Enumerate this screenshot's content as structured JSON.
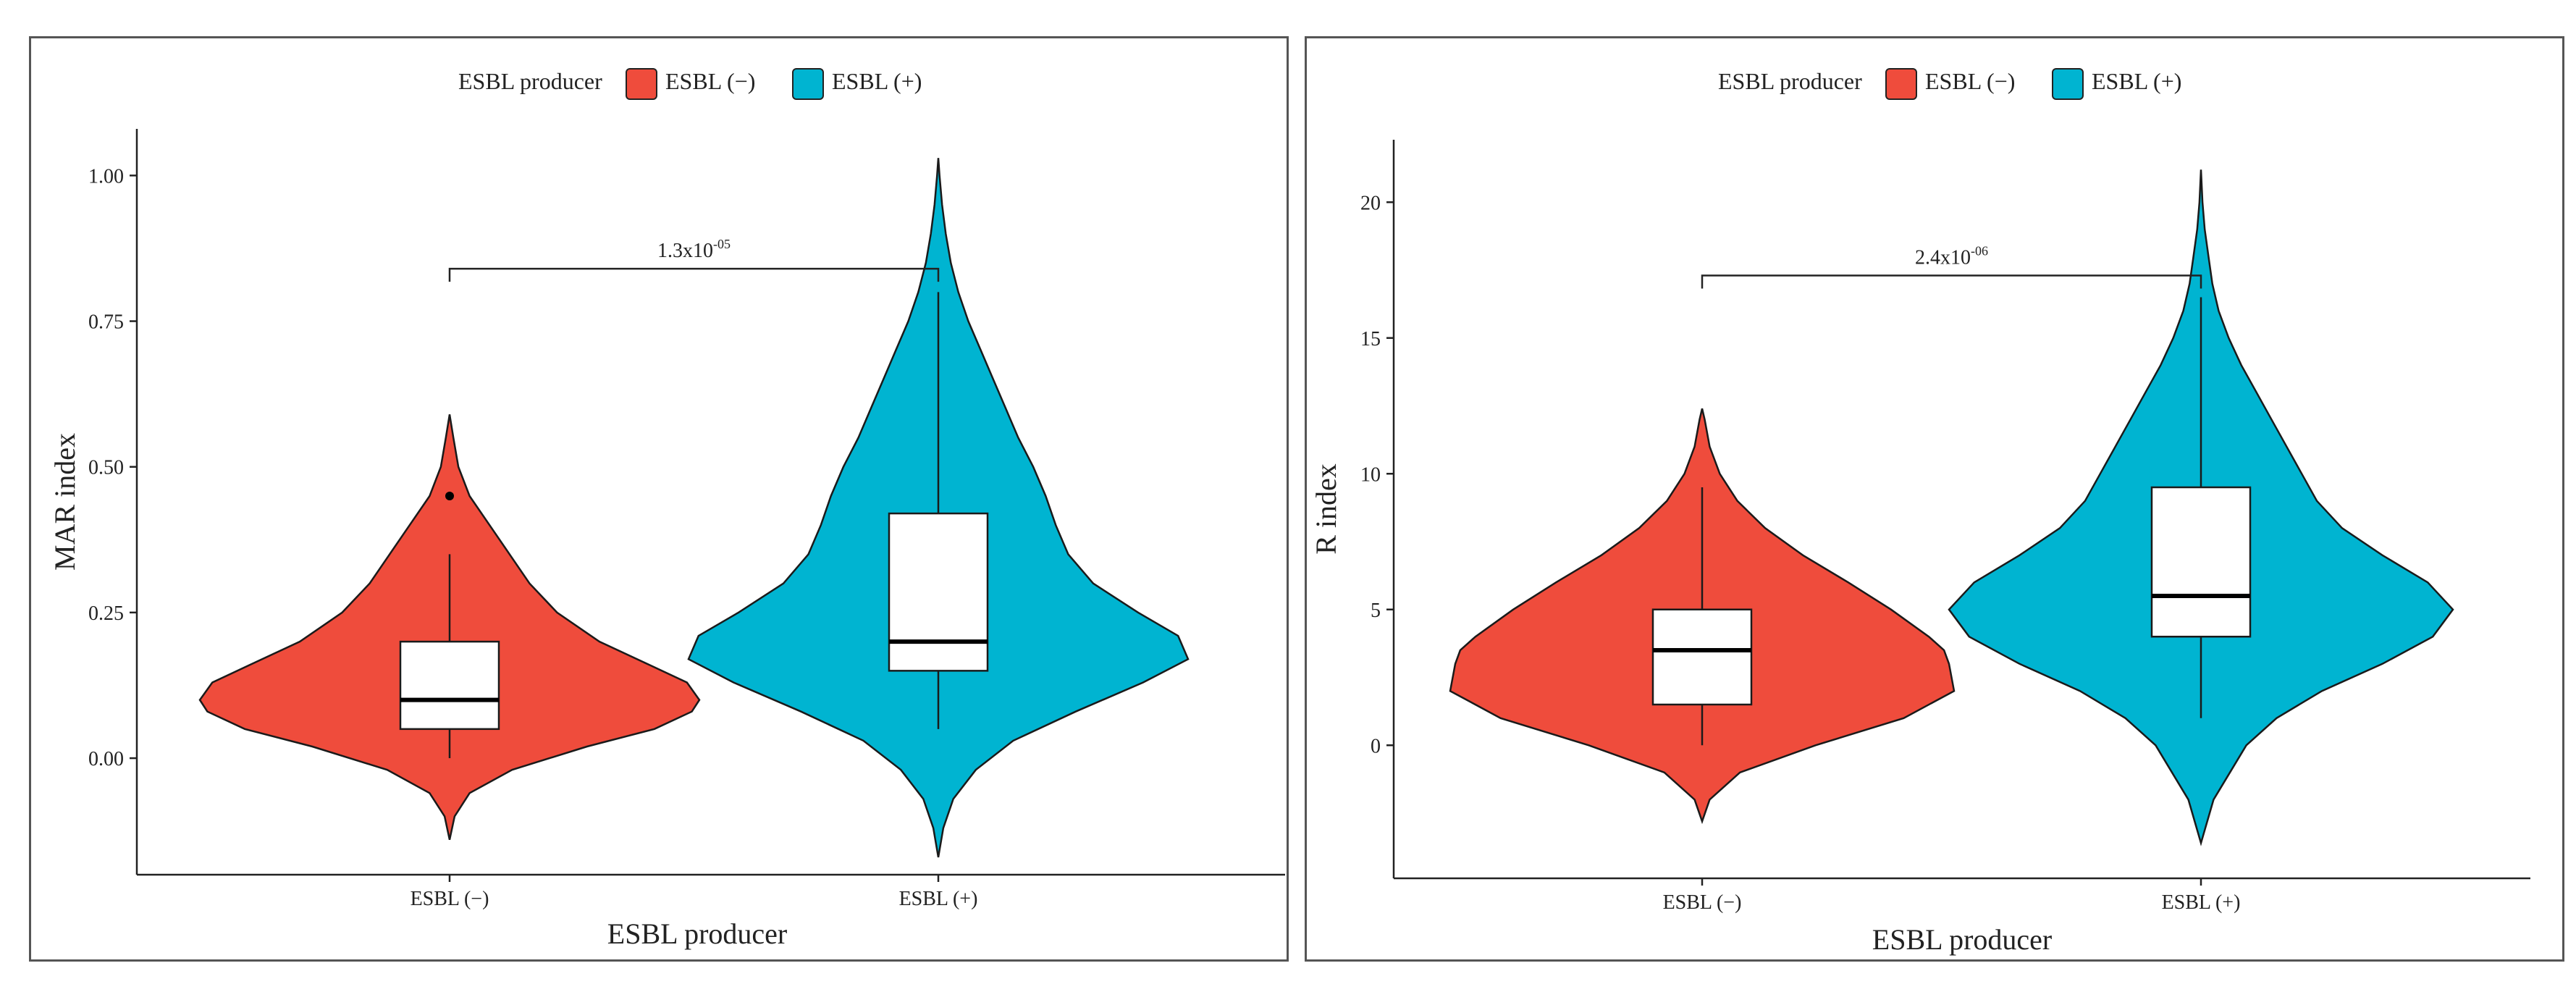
{
  "colors": {
    "negative": "#ef4c3c",
    "positive": "#00b4d1",
    "box_fill": "#ffffff",
    "outline": "#1a1a1a"
  },
  "panels": [
    {
      "legend": {
        "title": "ESBL producer",
        "items": [
          "ESBL (−)",
          "ESBL (+)"
        ]
      },
      "xlabel": "ESBL producer",
      "ylabel": "MAR index",
      "x_categories": [
        "ESBL (−)",
        "ESBL (+)"
      ],
      "y_ticks": [
        "0.00",
        "0.25",
        "0.50",
        "0.75",
        "1.00"
      ],
      "annotation": {
        "base": "1.3x10",
        "exp": "-05"
      }
    },
    {
      "legend": {
        "title": "ESBL producer",
        "items": [
          "ESBL (−)",
          "ESBL (+)"
        ]
      },
      "xlabel": "ESBL producer",
      "ylabel": "R index",
      "x_categories": [
        "ESBL (−)",
        "ESBL (+)"
      ],
      "y_ticks": [
        "0",
        "5",
        "10",
        "15",
        "20"
      ],
      "annotation": {
        "base": "2.4x10",
        "exp": "-06"
      }
    }
  ],
  "chart_data": [
    {
      "type": "violin",
      "xlabel": "ESBL producer",
      "ylabel": "MAR index",
      "categories": [
        "ESBL (−)",
        "ESBL (+)"
      ],
      "ylim": [
        -0.2,
        1.08
      ],
      "yticks": [
        0,
        0.25,
        0.5,
        0.75,
        1.0
      ],
      "grid": false,
      "legend_position": "top",
      "series": [
        {
          "name": "ESBL (−)",
          "violin": {
            "min": -0.14,
            "max": 0.59,
            "density": [
              [
                -0.14,
                0.0
              ],
              [
                -0.1,
                0.02
              ],
              [
                -0.06,
                0.08
              ],
              [
                -0.02,
                0.25
              ],
              [
                0.02,
                0.55
              ],
              [
                0.05,
                0.82
              ],
              [
                0.08,
                0.97
              ],
              [
                0.1,
                1.0
              ],
              [
                0.13,
                0.95
              ],
              [
                0.16,
                0.8
              ],
              [
                0.2,
                0.6
              ],
              [
                0.25,
                0.43
              ],
              [
                0.3,
                0.32
              ],
              [
                0.35,
                0.24
              ],
              [
                0.4,
                0.16
              ],
              [
                0.45,
                0.08
              ],
              [
                0.5,
                0.035
              ],
              [
                0.55,
                0.015
              ],
              [
                0.59,
                0.0
              ]
            ]
          },
          "box": {
            "whisker_low": 0.0,
            "q1": 0.05,
            "median": 0.1,
            "q3": 0.2,
            "whisker_high": 0.35
          },
          "outliers": [
            0.45
          ]
        },
        {
          "name": "ESBL (+)",
          "violin": {
            "min": -0.17,
            "max": 1.03,
            "density": [
              [
                -0.17,
                0.0
              ],
              [
                -0.12,
                0.02
              ],
              [
                -0.07,
                0.06
              ],
              [
                -0.02,
                0.15
              ],
              [
                0.03,
                0.3
              ],
              [
                0.08,
                0.55
              ],
              [
                0.13,
                0.82
              ],
              [
                0.17,
                1.0
              ],
              [
                0.21,
                0.96
              ],
              [
                0.25,
                0.8
              ],
              [
                0.3,
                0.62
              ],
              [
                0.35,
                0.52
              ],
              [
                0.4,
                0.47
              ],
              [
                0.45,
                0.43
              ],
              [
                0.5,
                0.38
              ],
              [
                0.55,
                0.32
              ],
              [
                0.6,
                0.27
              ],
              [
                0.65,
                0.22
              ],
              [
                0.7,
                0.17
              ],
              [
                0.75,
                0.12
              ],
              [
                0.8,
                0.08
              ],
              [
                0.85,
                0.05
              ],
              [
                0.9,
                0.03
              ],
              [
                0.95,
                0.015
              ],
              [
                1.0,
                0.005
              ],
              [
                1.03,
                0.0
              ]
            ]
          },
          "box": {
            "whisker_low": 0.05,
            "q1": 0.15,
            "median": 0.2,
            "q3": 0.42,
            "whisker_high": 0.8
          },
          "outliers": []
        }
      ],
      "comparison": {
        "from": "ESBL (−)",
        "to": "ESBL (+)",
        "y": 0.84,
        "label": "1.3x10^-05"
      }
    },
    {
      "type": "violin",
      "xlabel": "ESBL producer",
      "ylabel": "R index",
      "categories": [
        "ESBL (−)",
        "ESBL (+)"
      ],
      "ylim": [
        -4.9,
        22.3
      ],
      "yticks": [
        0,
        5,
        10,
        15,
        20
      ],
      "grid": false,
      "legend_position": "top",
      "series": [
        {
          "name": "ESBL (−)",
          "violin": {
            "min": -2.8,
            "max": 12.4,
            "density": [
              [
                -2.8,
                0.0
              ],
              [
                -2.0,
                0.03
              ],
              [
                -1.0,
                0.15
              ],
              [
                0.0,
                0.45
              ],
              [
                1.0,
                0.8
              ],
              [
                2.0,
                1.0
              ],
              [
                3.0,
                0.98
              ],
              [
                3.5,
                0.96
              ],
              [
                4.0,
                0.9
              ],
              [
                5.0,
                0.75
              ],
              [
                6.0,
                0.58
              ],
              [
                7.0,
                0.4
              ],
              [
                8.0,
                0.25
              ],
              [
                9.0,
                0.14
              ],
              [
                10.0,
                0.07
              ],
              [
                11.0,
                0.03
              ],
              [
                12.0,
                0.01
              ],
              [
                12.4,
                0.0
              ]
            ]
          },
          "box": {
            "whisker_low": 0,
            "q1": 1.5,
            "median": 3.5,
            "q3": 5,
            "whisker_high": 9.5
          },
          "outliers": []
        },
        {
          "name": "ESBL (+)",
          "violin": {
            "min": -3.6,
            "max": 21.2,
            "density": [
              [
                -3.6,
                0.0
              ],
              [
                -2.0,
                0.05
              ],
              [
                0.0,
                0.18
              ],
              [
                1.0,
                0.3
              ],
              [
                2.0,
                0.48
              ],
              [
                3.0,
                0.72
              ],
              [
                4.0,
                0.92
              ],
              [
                5.0,
                1.0
              ],
              [
                6.0,
                0.9
              ],
              [
                7.0,
                0.72
              ],
              [
                8.0,
                0.56
              ],
              [
                9.0,
                0.46
              ],
              [
                10.0,
                0.4
              ],
              [
                11.0,
                0.34
              ],
              [
                12.0,
                0.28
              ],
              [
                13.0,
                0.22
              ],
              [
                14.0,
                0.16
              ],
              [
                15.0,
                0.11
              ],
              [
                16.0,
                0.07
              ],
              [
                17.0,
                0.045
              ],
              [
                18.0,
                0.03
              ],
              [
                19.0,
                0.015
              ],
              [
                20.0,
                0.006
              ],
              [
                21.2,
                0.0
              ]
            ]
          },
          "box": {
            "whisker_low": 1,
            "q1": 4,
            "median": 5.5,
            "q3": 9.5,
            "whisker_high": 16.5
          },
          "outliers": []
        }
      ],
      "comparison": {
        "from": "ESBL (−)",
        "to": "ESBL (+)",
        "y": 17.3,
        "label": "2.4x10^-06"
      }
    }
  ]
}
